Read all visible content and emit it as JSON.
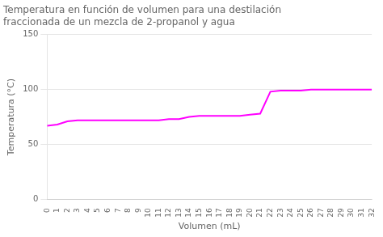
{
  "chart_data": {
    "type": "line",
    "title": [
      "Temperatura en función de volumen para una destilación",
      "fraccionada de un mezcla de 2-propanol y agua"
    ],
    "xlabel": "Volumen (mL)",
    "ylabel": "Temperatura (°C)",
    "x": [
      0,
      1,
      2,
      3,
      4,
      5,
      6,
      7,
      8,
      9,
      10,
      11,
      12,
      13,
      14,
      15,
      16,
      17,
      18,
      19,
      20,
      21,
      22,
      23,
      24,
      25,
      26,
      27,
      28,
      29,
      30,
      31,
      32
    ],
    "values": [
      67,
      68,
      71,
      72,
      72,
      72,
      72,
      72,
      72,
      72,
      72,
      72,
      73,
      73,
      75,
      76,
      76,
      76,
      76,
      76,
      77,
      78,
      98,
      99,
      99,
      99,
      100,
      100,
      100,
      100,
      100,
      100,
      100
    ],
    "color": "#ff00ff",
    "xlim": [
      0,
      32
    ],
    "xticks": [
      0,
      1,
      2,
      3,
      4,
      5,
      6,
      7,
      8,
      9,
      10,
      11,
      12,
      13,
      14,
      15,
      16,
      17,
      18,
      19,
      20,
      21,
      22,
      23,
      24,
      25,
      26,
      27,
      28,
      29,
      30,
      31,
      32
    ],
    "ylim": [
      0,
      150
    ],
    "yticks": [
      0,
      50,
      100,
      150
    ],
    "grid": "y"
  }
}
